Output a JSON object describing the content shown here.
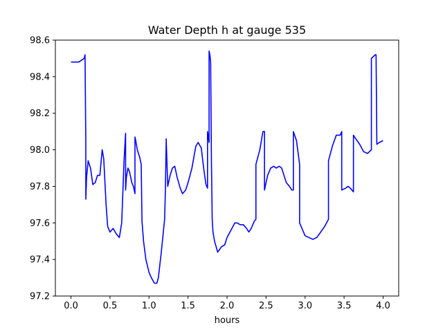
{
  "chart_data": {
    "type": "line",
    "title": "Water Depth h at gauge 535",
    "xlabel": "hours",
    "ylabel": "",
    "xlim": [
      -0.2,
      4.2
    ],
    "ylim": [
      97.2,
      98.6
    ],
    "xticks": [
      0.0,
      0.5,
      1.0,
      1.5,
      2.0,
      2.5,
      3.0,
      3.5,
      4.0
    ],
    "xtick_labels": [
      "0.0",
      "0.5",
      "1.0",
      "1.5",
      "2.0",
      "2.5",
      "3.0",
      "3.5",
      "4.0"
    ],
    "yticks": [
      97.2,
      97.4,
      97.6,
      97.8,
      98.0,
      98.2,
      98.4,
      98.6
    ],
    "ytick_labels": [
      "97.2",
      "97.4",
      "97.6",
      "97.8",
      "98.0",
      "98.2",
      "98.4",
      "98.6"
    ],
    "grid": false,
    "line_color": "#0000ff",
    "series": [
      {
        "x": [
          0.0,
          0.1,
          0.17,
          0.18,
          0.19,
          0.19,
          0.2,
          0.22,
          0.25,
          0.28,
          0.31,
          0.34,
          0.37,
          0.4,
          0.42,
          0.45,
          0.47,
          0.5,
          0.54,
          0.58,
          0.62,
          0.65,
          0.68,
          0.7,
          0.7,
          0.71,
          0.73,
          0.75,
          0.78,
          0.8,
          0.82,
          0.82,
          0.83,
          0.85,
          0.88,
          0.9,
          0.91,
          0.93,
          0.96,
          1.0,
          1.03,
          1.07,
          1.1,
          1.12,
          1.16,
          1.2,
          1.21,
          1.22,
          1.22,
          1.24,
          1.27,
          1.3,
          1.33,
          1.36,
          1.4,
          1.43,
          1.47,
          1.5,
          1.55,
          1.6,
          1.63,
          1.67,
          1.7,
          1.73,
          1.75,
          1.75,
          1.77,
          1.77,
          1.78,
          1.79,
          1.8,
          1.81,
          1.82,
          1.84,
          1.88,
          1.93,
          1.97,
          2.0,
          2.05,
          2.1,
          2.13,
          2.17,
          2.21,
          2.25,
          2.28,
          2.31,
          2.35,
          2.37,
          2.37,
          2.42,
          2.46,
          2.48,
          2.48,
          2.52,
          2.56,
          2.6,
          2.63,
          2.67,
          2.7,
          2.73,
          2.76,
          2.8,
          2.83,
          2.85,
          2.85,
          2.89,
          2.93,
          2.93,
          2.97,
          3.0,
          3.05,
          3.1,
          3.15,
          3.2,
          3.25,
          3.3,
          3.3,
          3.35,
          3.4,
          3.45,
          3.47,
          3.47,
          3.52,
          3.55,
          3.58,
          3.62,
          3.62,
          3.65,
          3.7,
          3.75,
          3.8,
          3.85,
          3.85,
          3.9,
          3.91,
          3.92,
          3.95,
          4.0
        ],
        "y": [
          98.48,
          98.48,
          98.5,
          98.52,
          98.04,
          97.73,
          97.85,
          97.94,
          97.9,
          97.81,
          97.82,
          97.86,
          97.86,
          98.0,
          97.95,
          97.7,
          97.58,
          97.55,
          97.57,
          97.54,
          97.52,
          97.6,
          97.94,
          98.09,
          97.78,
          97.85,
          97.9,
          97.88,
          97.82,
          97.8,
          97.76,
          98.07,
          98.05,
          98.0,
          97.96,
          97.92,
          97.61,
          97.5,
          97.4,
          97.33,
          97.3,
          97.27,
          97.27,
          97.3,
          97.45,
          97.62,
          97.78,
          98.04,
          98.06,
          97.8,
          97.86,
          97.9,
          97.91,
          97.85,
          97.79,
          97.76,
          97.78,
          97.82,
          97.9,
          98.02,
          98.04,
          98.01,
          97.9,
          97.81,
          97.79,
          98.1,
          98.04,
          98.54,
          98.52,
          98.48,
          97.94,
          97.62,
          97.55,
          97.5,
          97.44,
          97.47,
          97.48,
          97.52,
          97.56,
          97.6,
          97.6,
          97.59,
          97.59,
          97.57,
          97.55,
          97.57,
          97.61,
          97.62,
          97.92,
          98.0,
          98.1,
          98.1,
          97.78,
          97.86,
          97.9,
          97.91,
          97.9,
          97.91,
          97.9,
          97.86,
          97.82,
          97.8,
          97.78,
          97.78,
          98.1,
          98.05,
          97.92,
          97.6,
          97.56,
          97.53,
          97.52,
          97.51,
          97.52,
          97.55,
          97.58,
          97.62,
          97.94,
          98.02,
          98.08,
          98.08,
          98.1,
          97.78,
          97.79,
          97.8,
          97.79,
          97.77,
          98.08,
          98.06,
          98.03,
          97.99,
          97.98,
          98.0,
          98.5,
          98.52,
          98.52,
          98.03,
          98.04,
          98.05
        ]
      }
    ]
  }
}
